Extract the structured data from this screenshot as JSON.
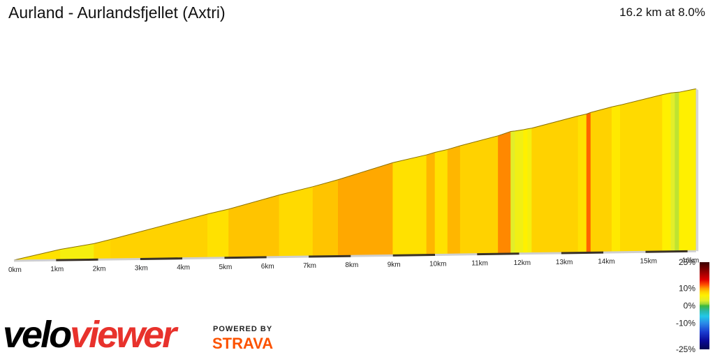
{
  "header": {
    "title": "Aurland - Aurlandsfjellet (Axtri)",
    "summary": "16.2 km at 8.0%"
  },
  "branding": {
    "logo_part1": "velo",
    "logo_part2": "viewer",
    "powered_by": "POWERED BY",
    "strava": "STRAVA"
  },
  "chart_data": {
    "type": "area",
    "title": "Aurland - Aurlandsfjellet (Axtri)",
    "xlabel": "",
    "ylabel": "",
    "distance_km": 16.2,
    "average_gradient_pct": 8.0,
    "x_ticks": [
      "0km",
      "1km",
      "2km",
      "3km",
      "4km",
      "5km",
      "6km",
      "7km",
      "8km",
      "9km",
      "10km",
      "11km",
      "12km",
      "13km",
      "14km",
      "15km",
      "16km"
    ],
    "segments": [
      {
        "from_km": 0.0,
        "to_km": 1.1,
        "gradient_pct": 7.0
      },
      {
        "from_km": 1.1,
        "to_km": 1.9,
        "gradient_pct": 5.0
      },
      {
        "from_km": 1.9,
        "to_km": 2.3,
        "gradient_pct": 7.5
      },
      {
        "from_km": 2.3,
        "to_km": 4.6,
        "gradient_pct": 8.0
      },
      {
        "from_km": 4.6,
        "to_km": 5.1,
        "gradient_pct": 7.0
      },
      {
        "from_km": 5.1,
        "to_km": 6.3,
        "gradient_pct": 8.5
      },
      {
        "from_km": 6.3,
        "to_km": 7.1,
        "gradient_pct": 7.5
      },
      {
        "from_km": 7.1,
        "to_km": 7.7,
        "gradient_pct": 8.5
      },
      {
        "from_km": 7.7,
        "to_km": 9.0,
        "gradient_pct": 9.5
      },
      {
        "from_km": 9.0,
        "to_km": 9.8,
        "gradient_pct": 7.0
      },
      {
        "from_km": 9.8,
        "to_km": 10.0,
        "gradient_pct": 9.0
      },
      {
        "from_km": 10.0,
        "to_km": 10.3,
        "gradient_pct": 7.0
      },
      {
        "from_km": 10.3,
        "to_km": 10.6,
        "gradient_pct": 9.0
      },
      {
        "from_km": 10.6,
        "to_km": 11.5,
        "gradient_pct": 8.0
      },
      {
        "from_km": 11.5,
        "to_km": 11.8,
        "gradient_pct": 10.5
      },
      {
        "from_km": 11.8,
        "to_km": 11.9,
        "gradient_pct": 3.0
      },
      {
        "from_km": 11.9,
        "to_km": 12.1,
        "gradient_pct": 4.5
      },
      {
        "from_km": 12.1,
        "to_km": 12.2,
        "gradient_pct": 6.0
      },
      {
        "from_km": 12.2,
        "to_km": 12.3,
        "gradient_pct": 5.0
      },
      {
        "from_km": 12.3,
        "to_km": 13.4,
        "gradient_pct": 8.0
      },
      {
        "from_km": 13.4,
        "to_km": 13.6,
        "gradient_pct": 7.0
      },
      {
        "from_km": 13.6,
        "to_km": 13.7,
        "gradient_pct": 11.5
      },
      {
        "from_km": 13.7,
        "to_km": 14.2,
        "gradient_pct": 8.0
      },
      {
        "from_km": 14.2,
        "to_km": 14.4,
        "gradient_pct": 6.5
      },
      {
        "from_km": 14.4,
        "to_km": 15.4,
        "gradient_pct": 7.5
      },
      {
        "from_km": 15.4,
        "to_km": 15.6,
        "gradient_pct": 6.0
      },
      {
        "from_km": 15.6,
        "to_km": 15.7,
        "gradient_pct": 3.0
      },
      {
        "from_km": 15.7,
        "to_km": 15.8,
        "gradient_pct": 2.0
      },
      {
        "from_km": 15.8,
        "to_km": 16.2,
        "gradient_pct": 6.0
      }
    ],
    "legend": {
      "labels": [
        "25%",
        "10%",
        "0%",
        "-10%",
        "-25%"
      ],
      "stops": [
        {
          "pct": 25,
          "color": "#3a0000"
        },
        {
          "pct": 20,
          "color": "#8b0000"
        },
        {
          "pct": 15,
          "color": "#e00000"
        },
        {
          "pct": 12,
          "color": "#ff5000"
        },
        {
          "pct": 10,
          "color": "#ff9a00"
        },
        {
          "pct": 8,
          "color": "#ffd200"
        },
        {
          "pct": 6,
          "color": "#fff000"
        },
        {
          "pct": 3,
          "color": "#e2ee2a"
        },
        {
          "pct": 1,
          "color": "#9ad83a"
        },
        {
          "pct": 0,
          "color": "#3cb83c"
        },
        {
          "pct": -3,
          "color": "#2ab8a8"
        },
        {
          "pct": -6,
          "color": "#22c8e8"
        },
        {
          "pct": -10,
          "color": "#2a8ae8"
        },
        {
          "pct": -15,
          "color": "#1a3cd0"
        },
        {
          "pct": -20,
          "color": "#0a0a9a"
        },
        {
          "pct": -25,
          "color": "#050550"
        }
      ]
    },
    "grid": false,
    "legend_placement": "right"
  }
}
